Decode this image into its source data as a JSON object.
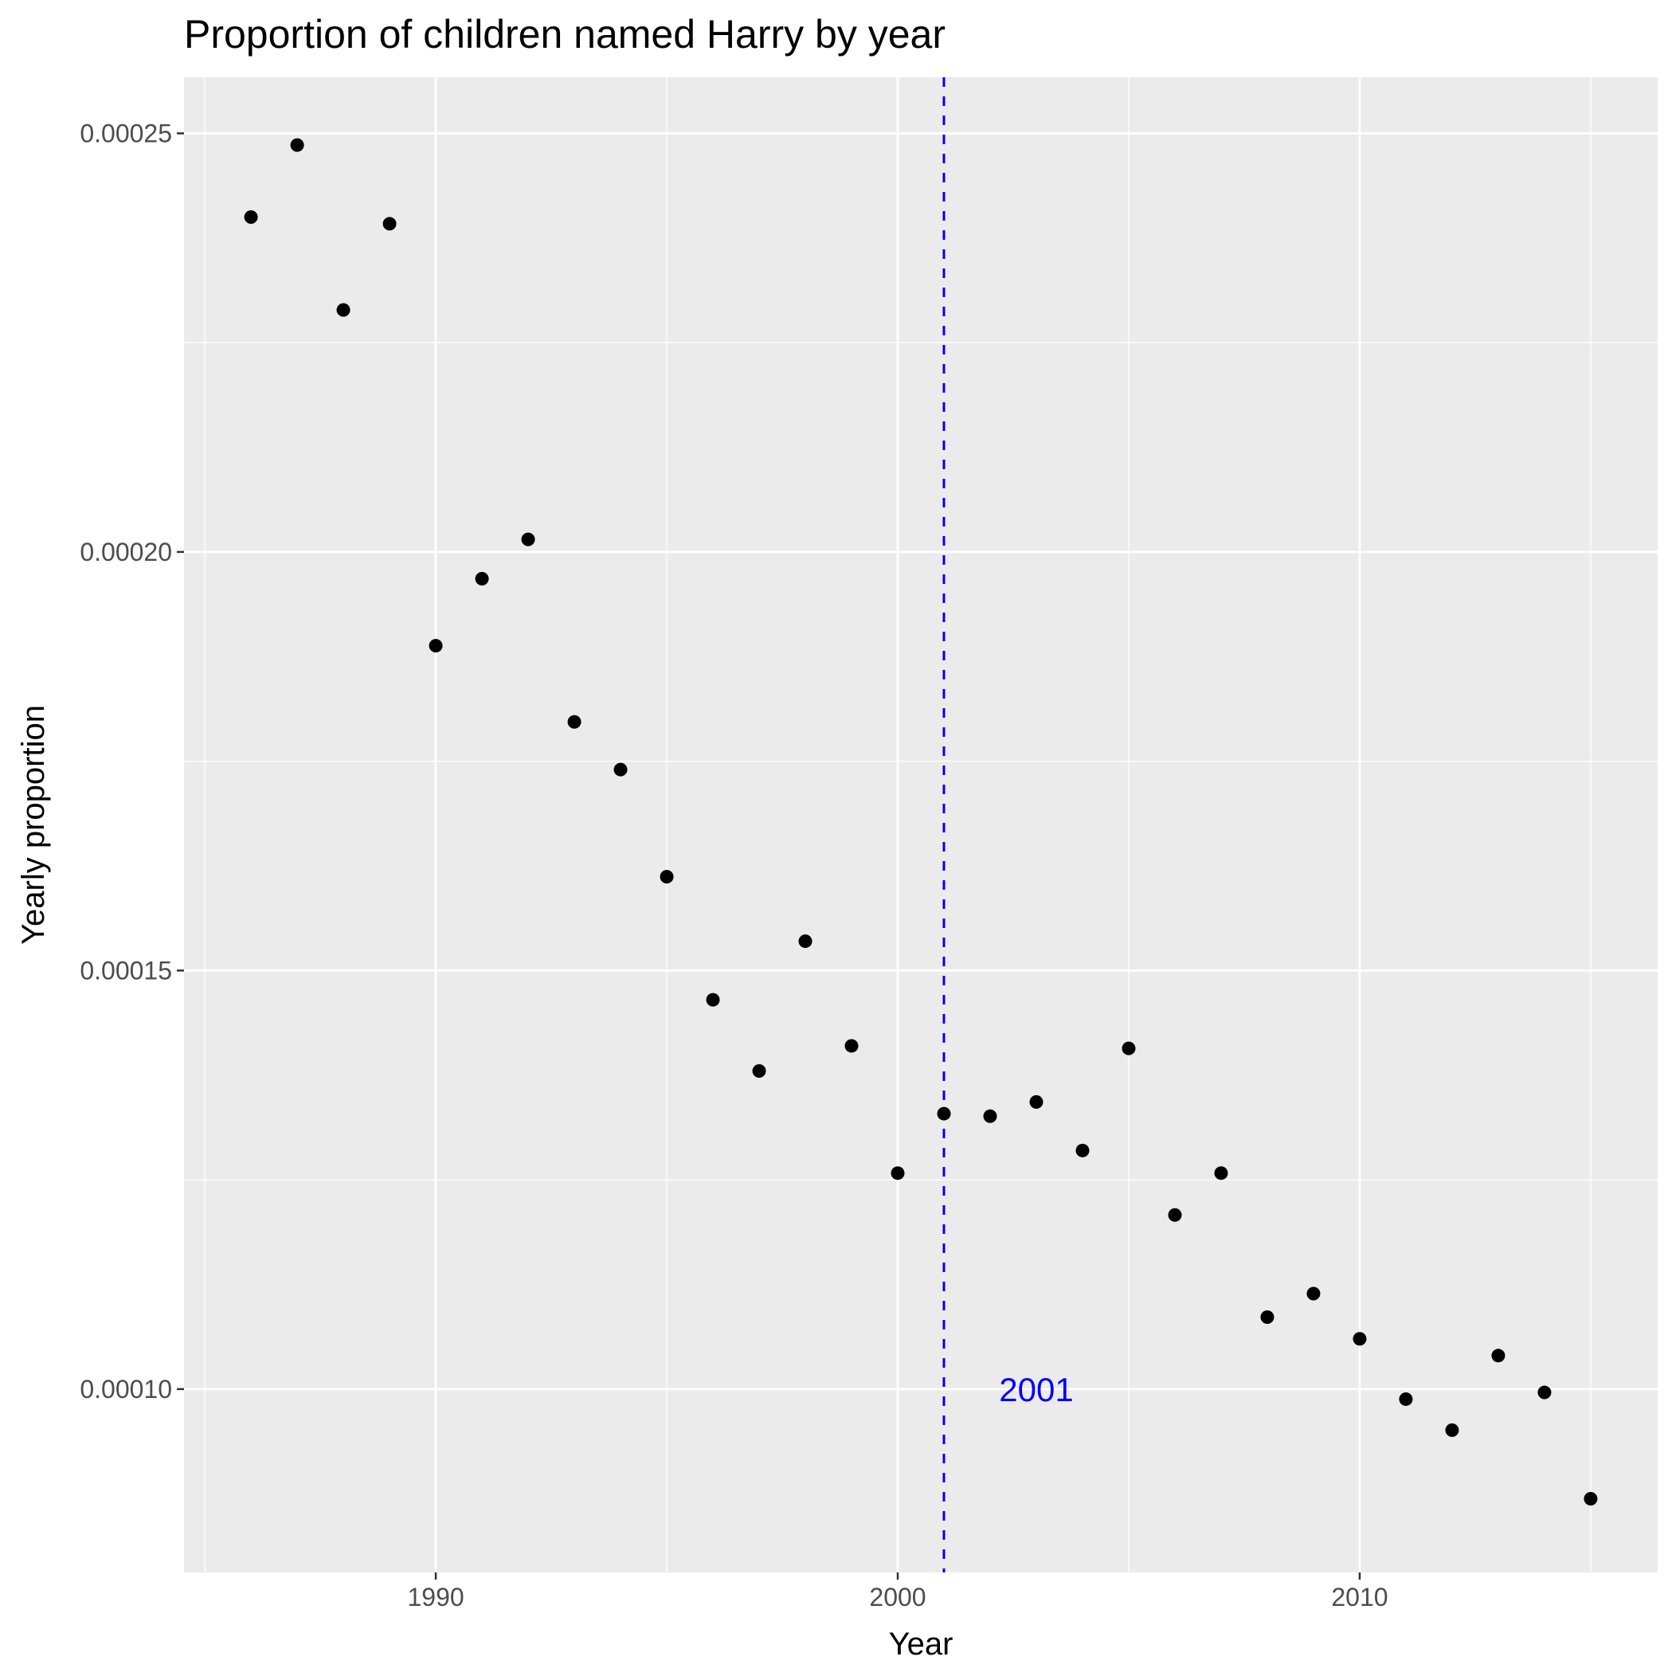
{
  "chart_data": {
    "type": "scatter",
    "title": "Proportion of children named Harry by year",
    "xlabel": "Year",
    "ylabel": "Yearly proportion",
    "xlim": [
      1984.55,
      2016.45
    ],
    "ylim": [
      7.81e-05,
      0.0002567
    ],
    "x_ticks": [
      1990,
      2000,
      2010
    ],
    "x_tick_labels": [
      "1990",
      "2000",
      "2010"
    ],
    "y_ticks": [
      0.0001,
      0.00015,
      0.0002,
      0.00025
    ],
    "y_tick_labels": [
      "0.00010",
      "0.00015",
      "0.00020",
      "0.00025"
    ],
    "grid": true,
    "legend": "none",
    "point_color": "#000000",
    "panel_background": "#ebebeb",
    "series": [
      {
        "x": [
          1986,
          1987,
          1988,
          1989,
          1990,
          1991,
          1992,
          1993,
          1994,
          1995,
          1996,
          1997,
          1998,
          1999,
          2000,
          2001,
          2002,
          2003,
          2004,
          2005,
          2006,
          2007,
          2008,
          2009,
          2010,
          2011,
          2012,
          2013,
          2014,
          2015
        ],
        "values": [
          0.00024,
          0.0002486,
          0.0002289,
          0.0002392,
          0.0001888,
          0.0001968,
          0.0002015,
          0.0001797,
          0.000174,
          0.0001612,
          0.0001465,
          0.000138,
          0.0001535,
          0.000141,
          0.0001258,
          0.0001329,
          0.0001326,
          0.0001343,
          0.0001285,
          0.0001407,
          0.0001208,
          0.0001258,
          0.0001086,
          0.0001114,
          0.000106,
          9.88e-05,
          9.51e-05,
          0.000104,
          9.96e-05,
          8.69e-05
        ]
      }
    ],
    "annotations": [
      {
        "type": "vline",
        "x": 2001,
        "color": "#0000ff",
        "style": "dashed"
      },
      {
        "type": "text",
        "label": "2001",
        "x": 2003,
        "y": 0.0001,
        "color": "#0000ff"
      }
    ]
  }
}
